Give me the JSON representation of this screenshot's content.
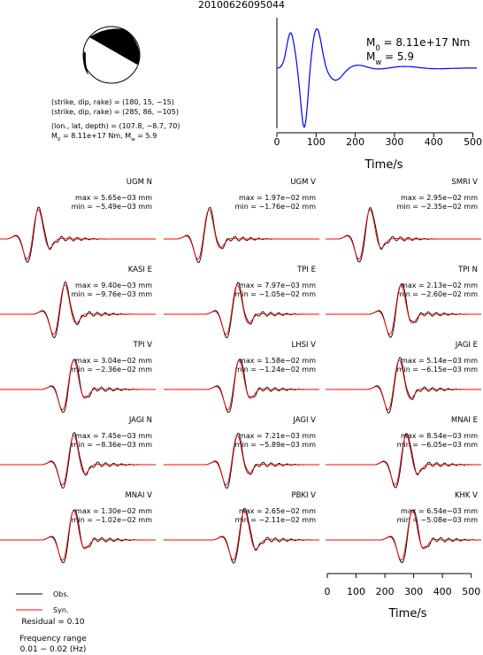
{
  "chart_data": {
    "type": "waveform-fit",
    "title": "20100626095044",
    "mechanism": {
      "nodal_plane_1": "(strike, dip, rake) = (180, 15, −15)",
      "nodal_plane_2": "(strike, dip, rake) = (285, 86, −105)",
      "location": "(lon., lat, depth) = (107.8, −8.7, 70)",
      "moment_parts": [
        "M",
        "0",
        " = 8.11e+17 Nm, M",
        "w",
        " = 5.9"
      ]
    },
    "source_time_function": {
      "color": "#0000ff",
      "moment_parts": [
        "M",
        "0",
        " = 8.11e+17 Nm"
      ],
      "magnitude_parts": [
        "M",
        "w",
        " = 5.9"
      ],
      "xlabel": "Time/s",
      "xlim": [
        0,
        510
      ],
      "xticks": [
        0,
        100,
        200,
        300,
        400,
        500
      ]
    },
    "stations": [
      {
        "name": "UGM N",
        "max": "max = 5.65e−03 mm",
        "min": "min = −5.49e−03 mm"
      },
      {
        "name": "UGM V",
        "max": "max = 1.97e−02 mm",
        "min": "min = −1.76e−02 mm"
      },
      {
        "name": "SMRI V",
        "max": "max = 2.95e−02 mm",
        "min": "min = −2.35e−02 mm"
      },
      {
        "name": "KASI E",
        "max": "max = 9.40e−03 mm",
        "min": "min = −9.76e−03 mm"
      },
      {
        "name": "TPI E",
        "max": "max = 7.97e−03 mm",
        "min": "min = −1.05e−02 mm"
      },
      {
        "name": "TPI N",
        "max": "max = 2.13e−02 mm",
        "min": "min = −2.60e−02 mm"
      },
      {
        "name": "TPI V",
        "max": "max = 3.04e−02 mm",
        "min": "min = −2.36e−02 mm"
      },
      {
        "name": "LHSI V",
        "max": "max = 1.58e−02 mm",
        "min": "min = −1.24e−02 mm"
      },
      {
        "name": "JAGI E",
        "max": "max = 5.14e−03 mm",
        "min": "min = −6.15e−03 mm"
      },
      {
        "name": "JAGI N",
        "max": "max = 7.45e−03 mm",
        "min": "min = −8.36e−03 mm"
      },
      {
        "name": "JAGI V",
        "max": "max = 7.21e−03 mm",
        "min": "min = −5.89e−03 mm"
      },
      {
        "name": "MNAI E",
        "max": "max = 8.54e−03 mm",
        "min": "min = −6.05e−03 mm"
      },
      {
        "name": "MNAI V",
        "max": "max = 1.30e−02 mm",
        "min": "min = −1.02e−02 mm"
      },
      {
        "name": "PBKI V",
        "max": "max = 2.65e−02 mm",
        "min": "min = −2.11e−02 mm"
      },
      {
        "name": "KHK V",
        "max": "max = 6.54e−03 mm",
        "min": "min = −5.08e−03 mm"
      }
    ],
    "series": [
      {
        "name": "Obs.",
        "color": "#000000"
      },
      {
        "name": "Syn.",
        "color": "#ff0000"
      }
    ],
    "residual": "Residual = 0.10",
    "frequency_title": "Frequency range",
    "frequency_range": "0.01 − 0.02 (Hz)",
    "xlabel": "Time/s",
    "xlim": [
      0,
      510
    ],
    "xticks": [
      0,
      100,
      200,
      300,
      400,
      500
    ]
  }
}
